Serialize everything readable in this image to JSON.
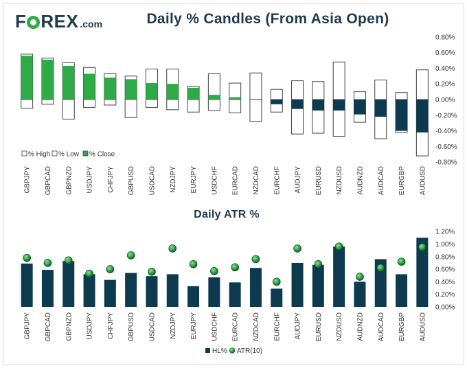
{
  "header": {
    "logo_left": "F",
    "logo_right": "REX",
    "logo_tld": ".com",
    "logo_text": "FOREX.com"
  },
  "colors": {
    "navy": "#0d3a4f",
    "green": "#2eaa46",
    "title": "#1f3b4d"
  },
  "chart_data": [
    {
      "type": "bar",
      "title": "Daily % Candles (From Asia Open)",
      "categories": [
        "GBPJPY",
        "GBPCAD",
        "GBPNZD",
        "USDJPY",
        "CHFJPY",
        "GBPUSD",
        "USDCAD",
        "NZDJPY",
        "EURJPY",
        "USDCHF",
        "EURCAD",
        "NZDCAD",
        "EURCHF",
        "AUDJPY",
        "EURUSD",
        "NZDUSD",
        "AUDNZD",
        "AUDCAD",
        "EURGBP",
        "AUDUSD"
      ],
      "series": [
        {
          "name": "% High",
          "values": [
            0.58,
            0.53,
            0.47,
            0.41,
            0.33,
            0.3,
            0.39,
            0.39,
            0.17,
            0.33,
            0.21,
            0.34,
            0.13,
            0.24,
            0.23,
            0.48,
            0.1,
            0.25,
            0.09,
            0.38
          ]
        },
        {
          "name": "% Low",
          "values": [
            -0.11,
            -0.06,
            -0.25,
            -0.1,
            -0.07,
            -0.23,
            -0.1,
            -0.13,
            -0.16,
            -0.14,
            -0.17,
            -0.28,
            -0.16,
            -0.44,
            -0.43,
            -0.47,
            -0.29,
            -0.5,
            -0.42,
            -0.72
          ]
        },
        {
          "name": "% Close",
          "values": [
            0.56,
            0.51,
            0.43,
            0.33,
            0.28,
            0.26,
            0.21,
            0.2,
            0.15,
            0.06,
            0.03,
            0.0,
            -0.06,
            -0.12,
            -0.14,
            -0.14,
            -0.19,
            -0.22,
            -0.4,
            -0.42
          ]
        }
      ],
      "yticks": [
        "0.80%",
        "0.60%",
        "0.40%",
        "0.20%",
        "0.00%",
        "-0.20%",
        "-0.40%",
        "-0.60%",
        "-0.80%"
      ],
      "ylim": [
        -0.8,
        0.8
      ],
      "legend": [
        "% High",
        "% Low",
        "% Close"
      ],
      "legend_position": "bottom-left"
    },
    {
      "type": "bar",
      "title": "Daily ATR %",
      "categories": [
        "GBPJPY",
        "GBPCAD",
        "GBPNZD",
        "USDJPY",
        "CHFJPY",
        "GBPUSD",
        "USDCAD",
        "NZDJPY",
        "EURJPY",
        "USDCHF",
        "EURCAD",
        "NZDCAD",
        "EURCHF",
        "AUDJPY",
        "EURUSD",
        "NZDUSD",
        "AUDNZD",
        "AUDCAD",
        "EURGBP",
        "AUDUSD"
      ],
      "series": [
        {
          "name": "HL%",
          "values": [
            0.69,
            0.59,
            0.73,
            0.52,
            0.43,
            0.54,
            0.49,
            0.52,
            0.33,
            0.47,
            0.39,
            0.62,
            0.29,
            0.7,
            0.67,
            0.96,
            0.4,
            0.76,
            0.52,
            1.1
          ]
        },
        {
          "name": "ATR(10)",
          "values": [
            0.78,
            0.7,
            0.74,
            0.53,
            0.6,
            0.82,
            0.56,
            0.93,
            0.68,
            0.57,
            0.63,
            0.76,
            0.4,
            0.93,
            0.68,
            0.96,
            0.48,
            0.62,
            0.72,
            0.95
          ]
        }
      ],
      "yticks": [
        "1.20%",
        "1.00%",
        "0.80%",
        "0.60%",
        "0.40%",
        "0.20%",
        "0.00%"
      ],
      "ylim": [
        0,
        1.2
      ],
      "legend": [
        "HL%",
        "ATR(10)"
      ],
      "legend_position": "bottom-center"
    }
  ]
}
